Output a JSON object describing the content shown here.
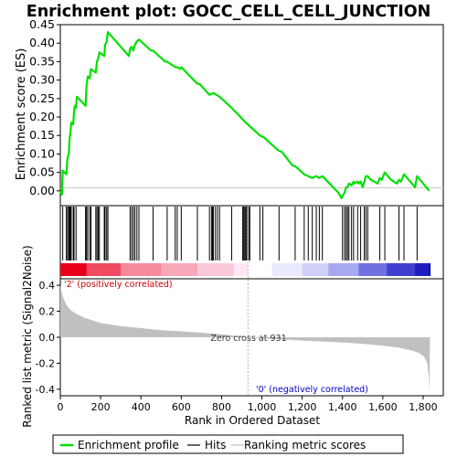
{
  "title": "Enrichment plot: GOCC_CELL_CELL_JUNCTION",
  "colors": {
    "enrichment_line": "#00e000",
    "hits": "#000000",
    "metric_fill": "#c0c0c0",
    "pos_label": "#cc0000",
    "neg_label": "#0000cc",
    "zero_cross_line": "#b0b0b0"
  },
  "chart_data": [
    {
      "type": "line",
      "name": "enrichment-profile",
      "ylabel": "Enrichment score (ES)",
      "xlim": [
        0,
        1900
      ],
      "ylim": [
        -0.04,
        0.45
      ],
      "yticks": [
        0.0,
        0.05,
        0.1,
        0.15,
        0.2,
        0.25,
        0.3,
        0.35,
        0.4,
        0.45
      ],
      "ytick_labels": [
        "0.00",
        "0.05",
        "0.10",
        "0.15",
        "0.20",
        "0.25",
        "0.30",
        "0.35",
        "0.40",
        "0.45"
      ],
      "points": [
        [
          0,
          0.0
        ],
        [
          8,
          -0.01
        ],
        [
          12,
          0.055
        ],
        [
          30,
          0.045
        ],
        [
          36,
          0.09
        ],
        [
          42,
          0.1
        ],
        [
          46,
          0.14
        ],
        [
          50,
          0.155
        ],
        [
          54,
          0.185
        ],
        [
          64,
          0.18
        ],
        [
          68,
          0.215
        ],
        [
          72,
          0.23
        ],
        [
          78,
          0.225
        ],
        [
          82,
          0.255
        ],
        [
          125,
          0.23
        ],
        [
          130,
          0.285
        ],
        [
          136,
          0.31
        ],
        [
          146,
          0.305
        ],
        [
          152,
          0.33
        ],
        [
          176,
          0.32
        ],
        [
          182,
          0.35
        ],
        [
          188,
          0.36
        ],
        [
          194,
          0.375
        ],
        [
          218,
          0.365
        ],
        [
          222,
          0.395
        ],
        [
          230,
          0.405
        ],
        [
          236,
          0.43
        ],
        [
          340,
          0.365
        ],
        [
          346,
          0.385
        ],
        [
          354,
          0.39
        ],
        [
          362,
          0.38
        ],
        [
          370,
          0.395
        ],
        [
          380,
          0.405
        ],
        [
          390,
          0.41
        ],
        [
          450,
          0.38
        ],
        [
          460,
          0.38
        ],
        [
          520,
          0.35
        ],
        [
          530,
          0.35
        ],
        [
          570,
          0.335
        ],
        [
          580,
          0.335
        ],
        [
          595,
          0.33
        ],
        [
          600,
          0.335
        ],
        [
          680,
          0.29
        ],
        [
          690,
          0.29
        ],
        [
          740,
          0.26
        ],
        [
          760,
          0.265
        ],
        [
          790,
          0.255
        ],
        [
          850,
          0.225
        ],
        [
          920,
          0.185
        ],
        [
          990,
          0.15
        ],
        [
          1010,
          0.145
        ],
        [
          1080,
          0.11
        ],
        [
          1100,
          0.105
        ],
        [
          1150,
          0.07
        ],
        [
          1170,
          0.065
        ],
        [
          1210,
          0.045
        ],
        [
          1250,
          0.035
        ],
        [
          1270,
          0.04
        ],
        [
          1285,
          0.035
        ],
        [
          1300,
          0.04
        ],
        [
          1380,
          -0.005
        ],
        [
          1395,
          -0.02
        ],
        [
          1400,
          -0.015
        ],
        [
          1410,
          -0.005
        ],
        [
          1418,
          0.01
        ],
        [
          1425,
          0.01
        ],
        [
          1432,
          0.02
        ],
        [
          1445,
          0.015
        ],
        [
          1455,
          0.025
        ],
        [
          1460,
          0.02
        ],
        [
          1475,
          0.025
        ],
        [
          1480,
          0.02
        ],
        [
          1490,
          0.025
        ],
        [
          1500,
          0.01
        ],
        [
          1508,
          0.025
        ],
        [
          1516,
          0.04
        ],
        [
          1525,
          0.04
        ],
        [
          1540,
          0.03
        ],
        [
          1575,
          0.02
        ],
        [
          1585,
          0.035
        ],
        [
          1595,
          0.03
        ],
        [
          1610,
          0.05
        ],
        [
          1640,
          0.03
        ],
        [
          1670,
          0.02
        ],
        [
          1680,
          0.03
        ],
        [
          1690,
          0.025
        ],
        [
          1705,
          0.045
        ],
        [
          1760,
          0.01
        ],
        [
          1770,
          0.04
        ],
        [
          1830,
          0.0
        ]
      ]
    },
    {
      "type": "hits",
      "name": "hits",
      "xlim": [
        0,
        1900
      ],
      "positions": [
        12,
        30,
        36,
        42,
        46,
        50,
        54,
        64,
        68,
        78,
        125,
        130,
        136,
        146,
        152,
        176,
        182,
        188,
        194,
        218,
        222,
        230,
        236,
        346,
        354,
        362,
        370,
        380,
        390,
        460,
        530,
        570,
        580,
        600,
        680,
        740,
        750,
        755,
        760,
        770,
        780,
        790,
        850,
        905,
        910,
        915,
        920,
        925,
        935,
        940,
        990,
        1005,
        1085,
        1165,
        1210,
        1230,
        1250,
        1270,
        1285,
        1300,
        1400,
        1410,
        1418,
        1425,
        1432,
        1445,
        1455,
        1475,
        1490,
        1508,
        1516,
        1525,
        1585,
        1610,
        1680,
        1705,
        1770
      ]
    },
    {
      "type": "heatmap",
      "name": "ranking-colorbar",
      "xlim": [
        0,
        1900
      ],
      "stops": [
        [
          0,
          "#e8001a"
        ],
        [
          130,
          "#f04a60"
        ],
        [
          300,
          "#f58a9a"
        ],
        [
          500,
          "#f8a8b8"
        ],
        [
          680,
          "#fbc8d8"
        ],
        [
          860,
          "#ffe6f4"
        ],
        [
          931,
          "#ffffff"
        ],
        [
          1050,
          "#eaeaff"
        ],
        [
          1200,
          "#d0d0fa"
        ],
        [
          1330,
          "#a8a8f0"
        ],
        [
          1480,
          "#7070e0"
        ],
        [
          1620,
          "#4040d0"
        ],
        [
          1760,
          "#1e1ec0"
        ],
        [
          1830,
          "#0000a8"
        ]
      ]
    },
    {
      "type": "area",
      "name": "ranked-list-metric",
      "xlabel": "Rank in Ordered Dataset",
      "ylabel": "Ranked list metric (Signal2Noise)",
      "xlim": [
        0,
        1900
      ],
      "ylim": [
        -0.45,
        0.45
      ],
      "xticks": [
        0,
        200,
        400,
        600,
        800,
        1000,
        1200,
        1400,
        1600,
        1800
      ],
      "xtick_labels": [
        "0",
        "200",
        "400",
        "600",
        "800",
        "1,000",
        "1,200",
        "1,400",
        "1,600",
        "1,800"
      ],
      "yticks": [
        -0.4,
        -0.2,
        0.0,
        0.2,
        0.4
      ],
      "ytick_labels": [
        "-0.4",
        "-0.2",
        "0.0",
        "0.2",
        "0.4"
      ],
      "points": [
        [
          0,
          0.4
        ],
        [
          5,
          0.36
        ],
        [
          15,
          0.3
        ],
        [
          30,
          0.25
        ],
        [
          50,
          0.21
        ],
        [
          80,
          0.18
        ],
        [
          120,
          0.15
        ],
        [
          200,
          0.11
        ],
        [
          300,
          0.085
        ],
        [
          400,
          0.07
        ],
        [
          500,
          0.055
        ],
        [
          600,
          0.045
        ],
        [
          700,
          0.035
        ],
        [
          800,
          0.022
        ],
        [
          931,
          0.0
        ],
        [
          1000,
          -0.008
        ],
        [
          1100,
          -0.017
        ],
        [
          1200,
          -0.025
        ],
        [
          1300,
          -0.032
        ],
        [
          1400,
          -0.04
        ],
        [
          1500,
          -0.05
        ],
        [
          1600,
          -0.065
        ],
        [
          1680,
          -0.08
        ],
        [
          1740,
          -0.1
        ],
        [
          1780,
          -0.12
        ],
        [
          1805,
          -0.15
        ],
        [
          1820,
          -0.2
        ],
        [
          1828,
          -0.3
        ],
        [
          1832,
          -0.42
        ],
        [
          1834,
          0.0
        ]
      ],
      "zero_cross_rank": 931
    }
  ],
  "annotations": {
    "zero_cross": "Zero cross at 931",
    "positive": "'2' (positively correlated)",
    "negative": "'0' (negatively correlated)"
  },
  "legend": {
    "position": "bottom",
    "items": [
      {
        "label": "Enrichment profile",
        "color": "#00e000"
      },
      {
        "label": "Hits",
        "color": "#000000"
      },
      {
        "label": "Ranking metric scores",
        "color": "#c0c0c0"
      }
    ]
  }
}
